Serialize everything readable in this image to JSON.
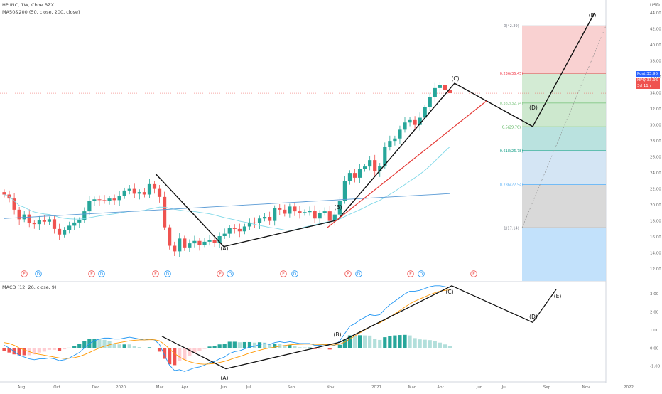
{
  "header": {
    "symbol_line": "HP INC, 1W, Cboe BZX",
    "ma_line": "MA50&200 (50, close, 200, close)",
    "macd_line": "MACD (12, 26, close, 9)",
    "currency": "USD"
  },
  "badges": {
    "post": "Post",
    "post_value": "33.96",
    "sym": "HPQ",
    "sym_value": "33.96",
    "countdown": "3d 11h"
  },
  "price_axis": {
    "ticks": [
      "44.00",
      "42.00",
      "40.00",
      "38.00",
      "36.00",
      "34.00",
      "32.00",
      "30.00",
      "28.00",
      "26.00",
      "24.00",
      "22.00",
      "20.00",
      "18.00",
      "16.00",
      "14.00",
      "12.00"
    ],
    "range": [
      10.5,
      44.9
    ]
  },
  "macd_axis": {
    "ticks": [
      "3.00",
      "2.00",
      "1.00",
      "0.00",
      "-1.00"
    ],
    "range": [
      -1.8,
      3.6
    ]
  },
  "time_axis": [
    "Aug",
    "Oct",
    "Dec",
    "2020",
    "Mar",
    "Apr",
    "Jun",
    "Jul",
    "Sep",
    "Nov",
    "2021",
    "Mar",
    "Apr",
    "Jun",
    "Jul",
    "Sep",
    "Nov",
    "2022"
  ],
  "events": [
    "E",
    "D",
    "E",
    "D",
    "E",
    "D",
    "E",
    "D",
    "E",
    "D",
    "E",
    "D",
    "E",
    "D",
    "E"
  ],
  "fib_levels": [
    {
      "label": "0(42.39)",
      "value": 42.39,
      "color": "#787b86"
    },
    {
      "label": "0.236(36.45)",
      "value": 36.45,
      "color": "#f23645"
    },
    {
      "label": "0.382(32.74)",
      "value": 32.74,
      "color": "#81c784"
    },
    {
      "label": "0.5(29.76)",
      "value": 29.76,
      "color": "#4caf50"
    },
    {
      "label": "0.618(26.78)",
      "value": 26.78,
      "color": "#089981"
    },
    {
      "label": "0.786(22.54)",
      "value": 22.54,
      "color": "#64b5f6"
    },
    {
      "label": "1(17.14)",
      "value": 17.14,
      "color": "#787b86"
    }
  ],
  "wave_labels": {
    "price": [
      "(A)",
      "(B)",
      "(C)",
      "(D)",
      "(E)"
    ],
    "macd": [
      "(A)",
      "(B)",
      "(C)",
      "(D)",
      "(E)"
    ]
  },
  "colors": {
    "up": "#26a69a",
    "down": "#ef5350",
    "ma50": "#7fd8e8",
    "ma200": "#5b9bd5",
    "macd": "#2196f3",
    "signal": "#ff9800",
    "trend": "#e53935"
  },
  "chart_data": [
    {
      "type": "candlestick",
      "title": "HP INC, 1W, Cboe BZX",
      "ylim": [
        10.5,
        44.9
      ],
      "series": [
        {
          "name": "price",
          "values": [
            21.3,
            20.8,
            19.4,
            18.2,
            18.8,
            17.7,
            17.6,
            18.1,
            17.9,
            18.2,
            17.0,
            16.3,
            16.9,
            17.4,
            17.8,
            18.1,
            19.2,
            20.5,
            20.7,
            20.6,
            20.5,
            20.8,
            20.6,
            21.1,
            21.8,
            22.0,
            21.4,
            21.6,
            21.3,
            22.6,
            22.0,
            21.0,
            17.2,
            14.9,
            14.2,
            15.8,
            14.6,
            15.2,
            15.5,
            15.0,
            15.4,
            15.6,
            15.3,
            16.1,
            16.4,
            17.1,
            17.0,
            16.7,
            17.3,
            17.8,
            17.7,
            18.3,
            18.5,
            18.0,
            19.6,
            19.4,
            18.9,
            19.8,
            19.2,
            19.0,
            19.1,
            19.3,
            18.3,
            19.0,
            19.2,
            18.0,
            18.8,
            20.5,
            23.0,
            24.0,
            23.4,
            24.5,
            24.8,
            25.6,
            24.2,
            24.9,
            27.3,
            28.0,
            28.3,
            29.4,
            30.3,
            30.6,
            30.0,
            30.9,
            32.2,
            33.5,
            34.6,
            35.0,
            34.4,
            33.96
          ]
        }
      ]
    },
    {
      "type": "line",
      "title": "MACD (12, 26, close, 9)",
      "ylim": [
        -1.8,
        3.6
      ],
      "series": [
        {
          "name": "macd",
          "values": [
            0.15,
            0.0,
            -0.2,
            -0.4,
            -0.5,
            -0.6,
            -0.65,
            -0.6,
            -0.6,
            -0.55,
            -0.6,
            -0.7,
            -0.65,
            -0.55,
            -0.4,
            -0.25,
            0.0,
            0.25,
            0.4,
            0.5,
            0.55,
            0.55,
            0.5,
            0.5,
            0.55,
            0.6,
            0.55,
            0.5,
            0.45,
            0.5,
            0.45,
            0.2,
            -0.4,
            -0.95,
            -1.25,
            -1.2,
            -1.3,
            -1.2,
            -1.1,
            -1.05,
            -0.95,
            -0.8,
            -0.75,
            -0.6,
            -0.5,
            -0.3,
            -0.2,
            -0.15,
            -0.05,
            0.05,
            0.1,
            0.2,
            0.25,
            0.2,
            0.3,
            0.35,
            0.3,
            0.35,
            0.3,
            0.25,
            0.25,
            0.25,
            0.15,
            0.15,
            0.2,
            0.1,
            0.15,
            0.4,
            0.8,
            1.2,
            1.35,
            1.55,
            1.7,
            1.85,
            1.8,
            1.85,
            2.15,
            2.4,
            2.6,
            2.8,
            3.0,
            3.15,
            3.15,
            3.2,
            3.3,
            3.4,
            3.45,
            3.45,
            3.4,
            3.35
          ]
        },
        {
          "name": "signal",
          "values": [
            0.3,
            0.25,
            0.15,
            0.0,
            -0.1,
            -0.2,
            -0.3,
            -0.35,
            -0.4,
            -0.45,
            -0.5,
            -0.55,
            -0.58,
            -0.57,
            -0.53,
            -0.47,
            -0.37,
            -0.25,
            -0.12,
            0.0,
            0.1,
            0.18,
            0.25,
            0.3,
            0.35,
            0.4,
            0.43,
            0.45,
            0.45,
            0.46,
            0.46,
            0.4,
            0.2,
            -0.05,
            -0.3,
            -0.5,
            -0.65,
            -0.76,
            -0.83,
            -0.88,
            -0.9,
            -0.88,
            -0.86,
            -0.8,
            -0.74,
            -0.65,
            -0.55,
            -0.47,
            -0.38,
            -0.28,
            -0.2,
            -0.12,
            -0.05,
            0.0,
            0.05,
            0.1,
            0.14,
            0.18,
            0.2,
            0.21,
            0.22,
            0.22,
            0.21,
            0.2,
            0.2,
            0.18,
            0.17,
            0.22,
            0.33,
            0.5,
            0.67,
            0.84,
            1.0,
            1.16,
            1.3,
            1.4,
            1.55,
            1.72,
            1.9,
            2.08,
            2.27,
            2.45,
            2.6,
            2.72,
            2.84,
            2.96,
            3.06,
            3.15,
            3.2,
            3.22
          ]
        }
      ]
    }
  ]
}
